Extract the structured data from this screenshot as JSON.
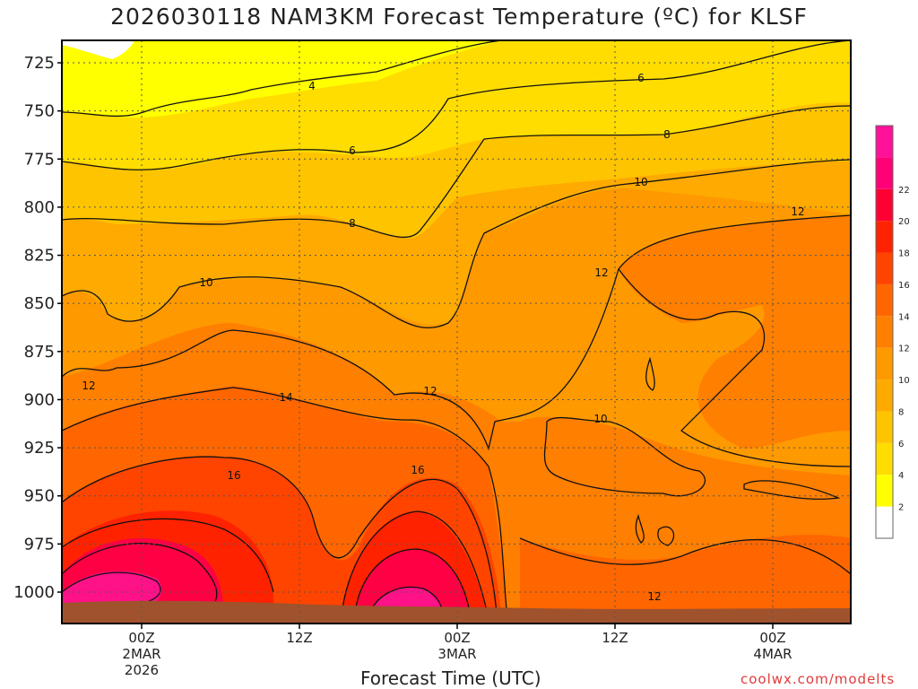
{
  "title": "2026030118 NAM3KM Forecast Temperature (ºC) for KLSF",
  "xaxis_title": "Forecast Time (UTC)",
  "credit": "coolwx.com/modelts",
  "chart_data": {
    "type": "heatmap",
    "title": "2026030118 NAM3KM Forecast Temperature (ºC) for KLSF",
    "xlabel": "Forecast Time (UTC)",
    "ylabel": "",
    "y_ticks": [
      725,
      750,
      775,
      800,
      825,
      850,
      875,
      900,
      925,
      950,
      975,
      1000
    ],
    "x_ticks": [
      {
        "lines": [
          "00Z",
          "2MAR",
          "2026"
        ]
      },
      {
        "lines": [
          "12Z"
        ]
      },
      {
        "lines": [
          "00Z",
          "3MAR"
        ]
      },
      {
        "lines": [
          "12Z"
        ]
      },
      {
        "lines": [
          "00Z",
          "4MAR"
        ]
      }
    ],
    "colorbar": {
      "ticks": [
        2,
        4,
        6,
        8,
        10,
        12,
        14,
        16,
        18,
        20,
        22
      ],
      "colors": [
        "#ffffff",
        "#ffff00",
        "#ffdd00",
        "#ffc400",
        "#ffaa00",
        "#ff9900",
        "#ff7f00",
        "#ff6600",
        "#ff4400",
        "#ff2200",
        "#ff0033",
        "#ff0077",
        "#ff1199"
      ]
    },
    "contour_labels": [
      {
        "text": "4",
        "pos": "upper-left"
      },
      {
        "text": "6"
      },
      {
        "text": "6"
      },
      {
        "text": "8"
      },
      {
        "text": "8"
      },
      {
        "text": "10"
      },
      {
        "text": "10"
      },
      {
        "text": "10"
      },
      {
        "text": "12"
      },
      {
        "text": "12"
      },
      {
        "text": "12"
      },
      {
        "text": "12"
      },
      {
        "text": "12"
      },
      {
        "text": "14"
      },
      {
        "text": "16"
      },
      {
        "text": "16"
      }
    ],
    "grid": true
  }
}
